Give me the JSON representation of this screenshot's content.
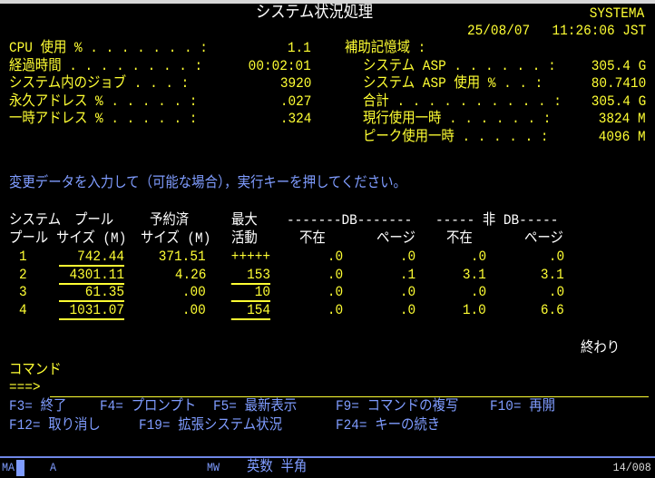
{
  "header": {
    "title": "システム状況処理",
    "system": "SYSTEMA",
    "date": "25/08/07",
    "time": "11:26:06 JST"
  },
  "left_fields": [
    {
      "label": "CPU 使用 % . . . . . . . :",
      "value": "1.1"
    },
    {
      "label": "経過時間 . . . . . . . . :",
      "value": "00:02:01"
    },
    {
      "label": "システム内のジョブ . . . :",
      "value": "3920"
    },
    {
      "label": "永久アドレス % . . . . . :",
      "value": ".027"
    },
    {
      "label": "一時アドレス % . . . . . :",
      "value": ".324"
    }
  ],
  "aux_storage": {
    "label": "補助記憶域 :",
    "fields": [
      {
        "label": "システム ASP . . . . . . :",
        "value": "305.4 G"
      },
      {
        "label": "システム ASP 使用 % . . :",
        "value": "80.7410"
      },
      {
        "label": "合計 . . . . . . . . . . :",
        "value": "305.4 G"
      },
      {
        "label": "現行使用一時 . . . . . . :",
        "value": "3824 M"
      },
      {
        "label": "ピーク使用一時 . . . . . :",
        "value": "4096 M"
      }
    ]
  },
  "instruction": "変更データを入力して（可能な場合），実行キーを押してください。",
  "table": {
    "header1": [
      "システム",
      "プール",
      "予約済",
      "最大",
      "-------DB-------",
      "----- 非 DB-----"
    ],
    "header2": [
      "プール",
      "サイズ (M)",
      "サイズ (M)",
      "活動",
      "不在",
      "ページ",
      "不在",
      "ページ"
    ],
    "rows": [
      [
        "1",
        "742.44",
        "371.51",
        "+++++",
        ".0",
        ".0",
        ".0",
        ".0"
      ],
      [
        "2",
        "4301.11",
        "4.26",
        "153",
        ".0",
        ".1",
        "3.1",
        "3.1"
      ],
      [
        "3",
        "61.35",
        ".00",
        "10",
        ".0",
        ".0",
        ".0",
        ".0"
      ],
      [
        "4",
        "1031.07",
        ".00",
        "154",
        ".0",
        ".0",
        "1.0",
        "6.6"
      ]
    ]
  },
  "more": "終わり",
  "command": {
    "label": "コマンド",
    "prompt": "===>",
    "value": ""
  },
  "fkeys": [
    [
      "F3= 終了",
      "F4= プロンプト",
      "F5= 最新表示",
      "F9= コマンドの複写",
      "F10= 再開"
    ],
    [
      "F12= 取り消し",
      "F19= 拡張システム状況",
      "F24= キーの続き"
    ]
  ],
  "status": {
    "ma": "MA",
    "a": "A",
    "mw": "MW",
    "ime": "英数 半角",
    "cursor_pos": "14/008"
  },
  "colors": {
    "background": "#000000",
    "field": "#ffff33",
    "title": "#ffffff",
    "fkeys": "#7f9cff"
  }
}
